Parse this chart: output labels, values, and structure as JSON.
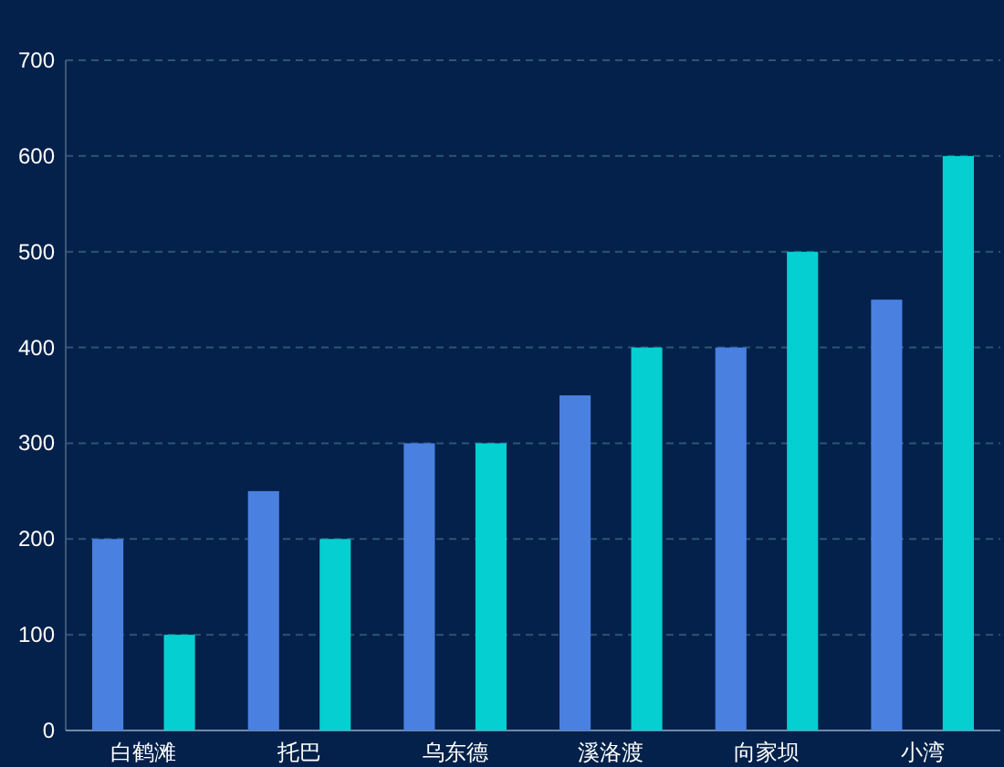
{
  "chart_data": {
    "type": "bar",
    "categories": [
      "白鹤滩",
      "托巴",
      "乌东德",
      "溪洛渡",
      "向家坝",
      "小湾"
    ],
    "series": [
      {
        "color": "#4a80e0",
        "values": [
          200,
          250,
          300,
          350,
          400,
          450
        ]
      },
      {
        "color": "#05cfd0",
        "values": [
          100,
          200,
          300,
          400,
          500,
          600
        ]
      }
    ],
    "ylim": [
      0,
      700
    ],
    "yticks": [
      0,
      100,
      200,
      300,
      400,
      500,
      600,
      700
    ],
    "grid": "y"
  }
}
